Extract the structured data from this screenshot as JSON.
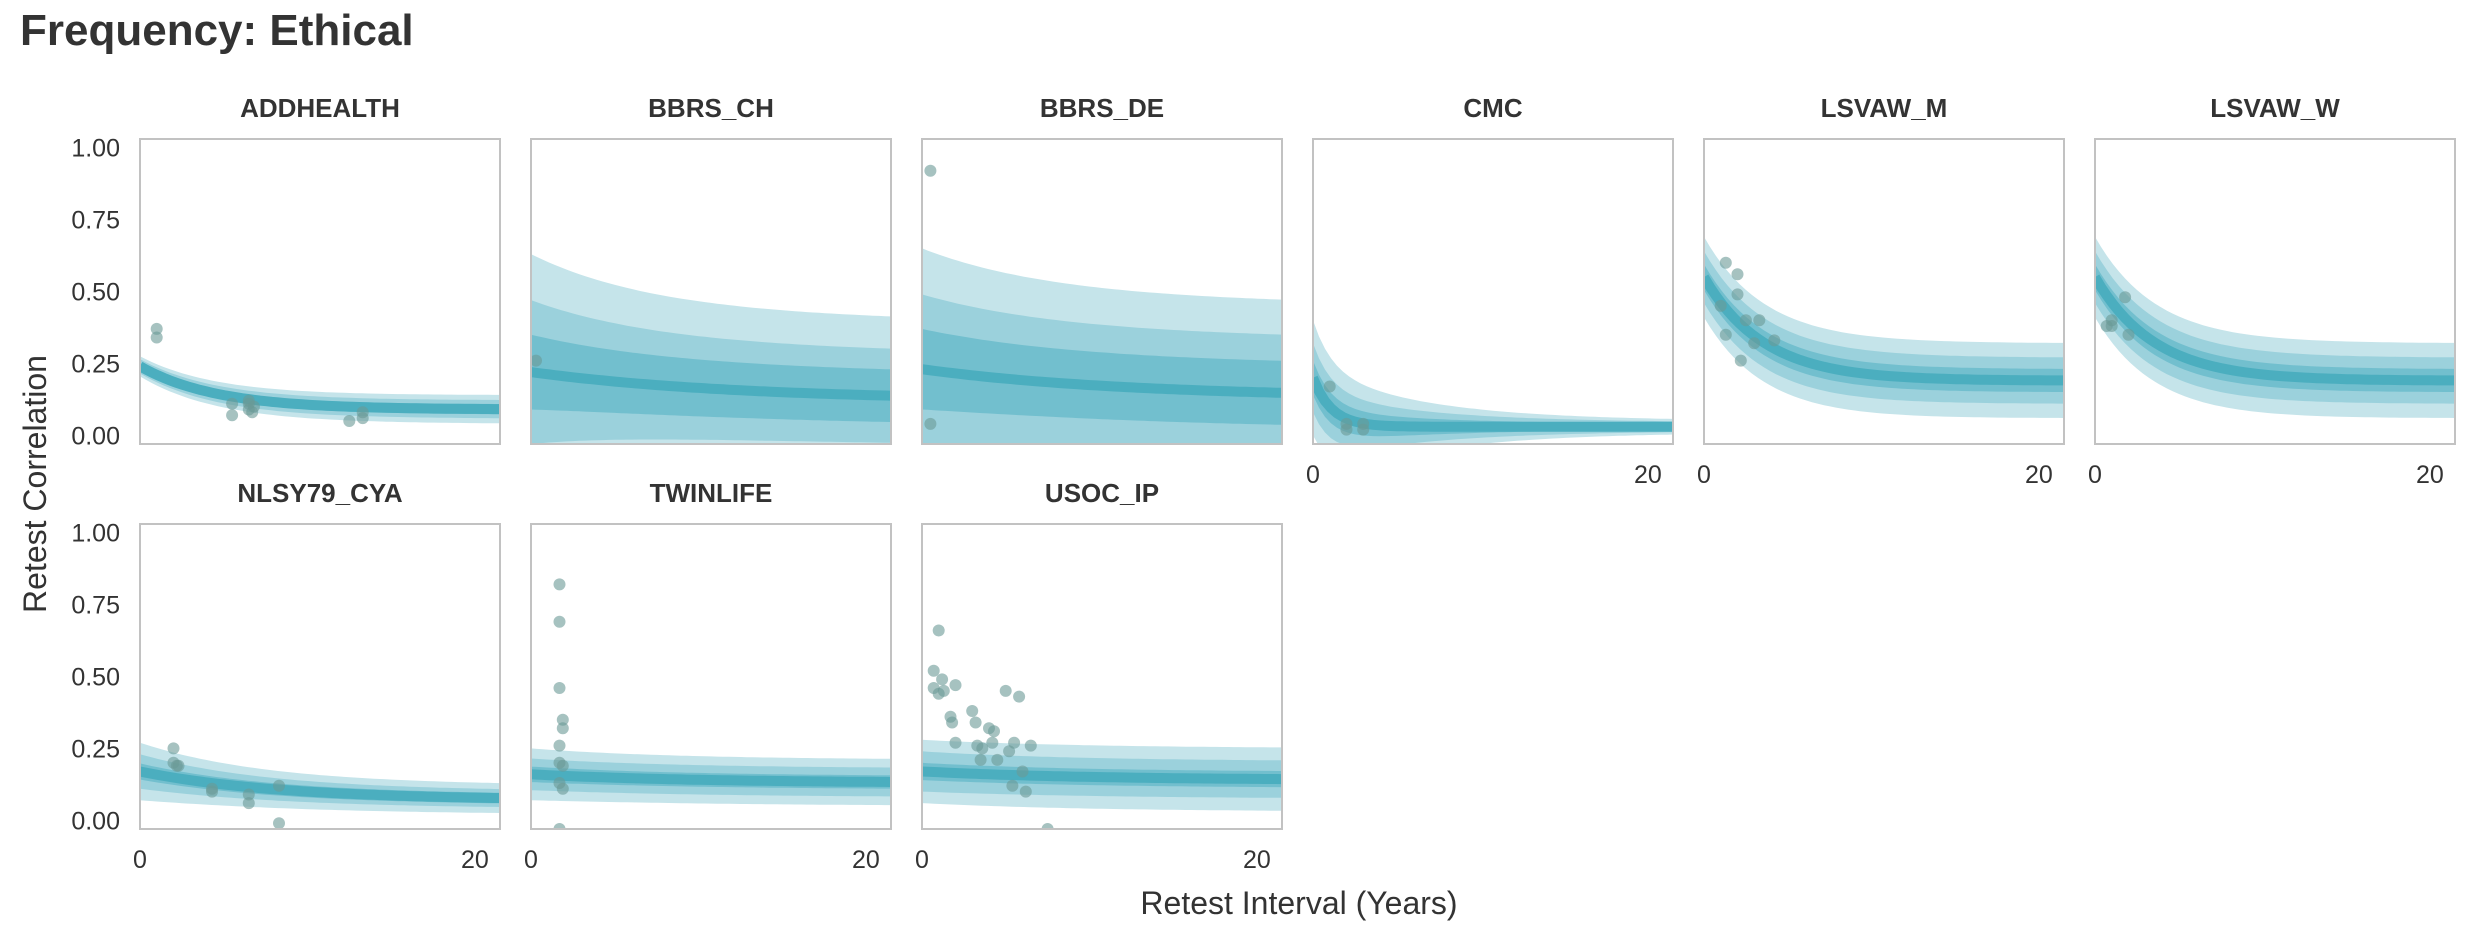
{
  "title": "Frequency: Ethical",
  "colors": {
    "band_light": "#c5e4ea",
    "band_mid": "#9bd1dc",
    "band_dark": "#72bfce",
    "line": "#4baebf",
    "point": "#6b9a96",
    "frame": "#c2c2c2",
    "text": "#333333"
  },
  "chart_data": {
    "type": "scatter",
    "title": "Frequency: Ethical",
    "xlabel": "Retest Interval (Years)",
    "ylabel": "Retest Correlation",
    "xlim": [
      0,
      21.5
    ],
    "ylim": [
      -0.03,
      1.03
    ],
    "xticks": [
      0,
      20
    ],
    "yticks": [
      0.0,
      0.25,
      0.5,
      0.75,
      1.0
    ],
    "ytick_labels": [
      "0.00",
      "0.25",
      "0.50",
      "0.75",
      "1.00"
    ],
    "grid": false,
    "panels": [
      {
        "name": "ADDHEALTH",
        "fit": {
          "start": 0.24,
          "asymptote": 0.09,
          "rate": 0.22
        },
        "bands": {
          "outer": [
            0.035,
            0.05
          ],
          "middle": [
            0.025,
            0.032
          ],
          "inner": [
            0.012,
            0.018
          ]
        },
        "points": [
          [
            1.0,
            0.37
          ],
          [
            1.0,
            0.34
          ],
          [
            5.5,
            0.11
          ],
          [
            5.5,
            0.07
          ],
          [
            6.5,
            0.12
          ],
          [
            6.5,
            0.11
          ],
          [
            6.5,
            0.09
          ],
          [
            6.7,
            0.08
          ],
          [
            6.8,
            0.1
          ],
          [
            12.5,
            0.05
          ],
          [
            13.3,
            0.06
          ],
          [
            13.3,
            0.08
          ]
        ]
      },
      {
        "name": "BBRS_CH",
        "fit": {
          "start": 0.22,
          "asymptote": 0.12,
          "rate": 0.08
        },
        "bands": {
          "outer": [
            0.41,
            0.27
          ],
          "middle": [
            0.25,
            0.16
          ],
          "inner": [
            0.13,
            0.09
          ]
        },
        "points": [
          [
            0.3,
            0.26
          ]
        ]
      },
      {
        "name": "BBRS_DE",
        "fit": {
          "start": 0.23,
          "asymptote": 0.13,
          "rate": 0.08
        },
        "bands": {
          "outer": [
            0.42,
            0.32
          ],
          "middle": [
            0.26,
            0.2
          ],
          "inner": [
            0.14,
            0.11
          ]
        },
        "points": [
          [
            0.5,
            0.92
          ],
          [
            0.5,
            0.04
          ]
        ]
      },
      {
        "name": "CMC",
        "fit": {
          "start": 0.2,
          "asymptote": 0.03,
          "rate": 0.9
        },
        "bands": {
          "outer": [
            0.2,
            0.02
          ],
          "middle": [
            0.12,
            0.015
          ],
          "inner": [
            0.06,
            0.01
          ]
        },
        "points": [
          [
            1.0,
            0.17
          ],
          [
            2.0,
            0.04
          ],
          [
            2.0,
            0.02
          ],
          [
            3.0,
            0.02
          ],
          [
            3.0,
            0.04
          ]
        ]
      },
      {
        "name": "LSVAW_M",
        "fit": {
          "start": 0.55,
          "asymptote": 0.19,
          "rate": 0.28
        },
        "bands": {
          "outer": [
            0.14,
            0.13
          ],
          "middle": [
            0.09,
            0.08
          ],
          "inner": [
            0.045,
            0.04
          ]
        },
        "points": [
          [
            1.0,
            0.45
          ],
          [
            1.3,
            0.35
          ],
          [
            1.3,
            0.6
          ],
          [
            2.0,
            0.56
          ],
          [
            2.0,
            0.49
          ],
          [
            2.2,
            0.26
          ],
          [
            2.5,
            0.4
          ],
          [
            3.0,
            0.32
          ],
          [
            3.3,
            0.4
          ],
          [
            4.2,
            0.33
          ]
        ]
      },
      {
        "name": "LSVAW_W",
        "fit": {
          "start": 0.55,
          "asymptote": 0.19,
          "rate": 0.28
        },
        "bands": {
          "outer": [
            0.14,
            0.13
          ],
          "middle": [
            0.09,
            0.08
          ],
          "inner": [
            0.045,
            0.04
          ]
        },
        "points": [
          [
            0.7,
            0.38
          ],
          [
            1.0,
            0.4
          ],
          [
            1.0,
            0.38
          ],
          [
            1.8,
            0.48
          ],
          [
            2.0,
            0.35
          ]
        ]
      },
      {
        "name": "NLSY79_CYA",
        "fit": {
          "start": 0.17,
          "asymptote": 0.07,
          "rate": 0.12
        },
        "bands": {
          "outer": [
            0.1,
            0.05
          ],
          "middle": [
            0.06,
            0.03
          ],
          "inner": [
            0.028,
            0.018
          ]
        },
        "points": [
          [
            2.0,
            0.25
          ],
          [
            2.0,
            0.2
          ],
          [
            2.2,
            0.19
          ],
          [
            2.3,
            0.19
          ],
          [
            4.3,
            0.11
          ],
          [
            4.3,
            0.1
          ],
          [
            6.5,
            0.09
          ],
          [
            6.5,
            0.06
          ],
          [
            8.3,
            0.12
          ],
          [
            8.3,
            -0.01
          ]
        ]
      },
      {
        "name": "TWINLIFE",
        "fit": {
          "start": 0.16,
          "asymptote": 0.13,
          "rate": 0.1
        },
        "bands": {
          "outer": [
            0.09,
            0.08
          ],
          "middle": [
            0.055,
            0.05
          ],
          "inner": [
            0.027,
            0.023
          ]
        },
        "points": [
          [
            1.7,
            0.82
          ],
          [
            1.7,
            0.69
          ],
          [
            1.7,
            0.46
          ],
          [
            1.9,
            0.35
          ],
          [
            1.9,
            0.32
          ],
          [
            1.7,
            0.26
          ],
          [
            1.7,
            0.2
          ],
          [
            1.9,
            0.19
          ],
          [
            1.7,
            0.13
          ],
          [
            1.9,
            0.11
          ],
          [
            1.7,
            -0.03
          ]
        ]
      },
      {
        "name": "USOC_IP",
        "fit": {
          "start": 0.17,
          "asymptote": 0.14,
          "rate": 0.1
        },
        "bands": {
          "outer": [
            0.11,
            0.11
          ],
          "middle": [
            0.07,
            0.065
          ],
          "inner": [
            0.03,
            0.028
          ]
        },
        "points": [
          [
            0.7,
            0.52
          ],
          [
            0.7,
            0.46
          ],
          [
            1.0,
            0.44
          ],
          [
            1.0,
            0.66
          ],
          [
            1.2,
            0.49
          ],
          [
            1.3,
            0.45
          ],
          [
            1.7,
            0.36
          ],
          [
            1.8,
            0.34
          ],
          [
            2.0,
            0.27
          ],
          [
            2.0,
            0.47
          ],
          [
            3.0,
            0.38
          ],
          [
            3.2,
            0.34
          ],
          [
            3.3,
            0.26
          ],
          [
            3.5,
            0.21
          ],
          [
            3.6,
            0.25
          ],
          [
            4.0,
            0.32
          ],
          [
            4.2,
            0.27
          ],
          [
            4.3,
            0.31
          ],
          [
            4.5,
            0.21
          ],
          [
            5.0,
            0.45
          ],
          [
            5.2,
            0.24
          ],
          [
            5.4,
            0.12
          ],
          [
            5.5,
            0.27
          ],
          [
            5.8,
            0.43
          ],
          [
            6.0,
            0.17
          ],
          [
            6.2,
            0.1
          ],
          [
            6.5,
            0.26
          ],
          [
            7.5,
            -0.03
          ]
        ]
      }
    ]
  }
}
